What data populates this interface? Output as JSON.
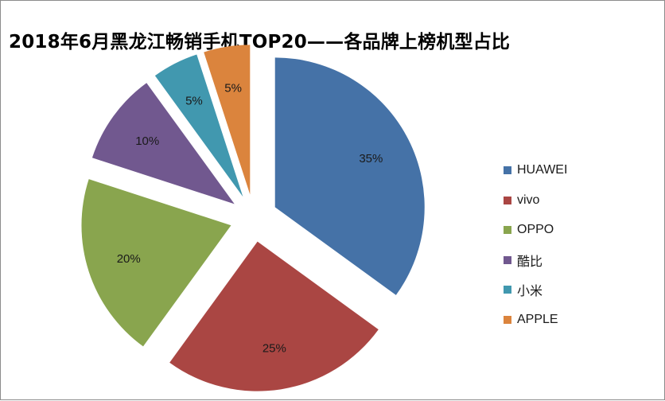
{
  "chart_data": {
    "type": "pie",
    "title": "2018年6月黑龙江畅销手机TOP20——各品牌上榜机型占比",
    "categories": [
      "HUAWEI",
      "vivo",
      "OPPO",
      "酷比",
      "小米",
      "APPLE"
    ],
    "values": [
      35,
      25,
      20,
      10,
      5,
      5
    ],
    "data_labels": [
      "35%",
      "25%",
      "20%",
      "10%",
      "5%",
      "5%"
    ],
    "colors": [
      "#4572a7",
      "#aa4643",
      "#89a54e",
      "#71588f",
      "#4198af",
      "#db843d"
    ],
    "exploded": true,
    "legend": "right"
  }
}
